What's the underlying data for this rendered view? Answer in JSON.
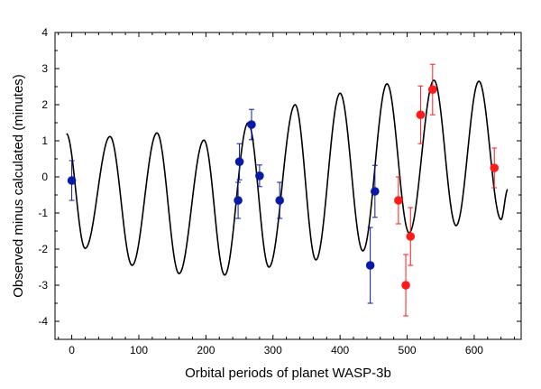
{
  "chart_data": {
    "type": "scatter",
    "title": "",
    "xlabel": "Orbital periods of planet WASP-3b",
    "ylabel": "Observed minus calculated (minutes)",
    "xlim": [
      -25,
      670
    ],
    "ylim": [
      -4.5,
      4
    ],
    "xticks": [
      0,
      100,
      200,
      300,
      400,
      500,
      600
    ],
    "yticks": [
      -4,
      -3,
      -2,
      -1,
      0,
      1,
      2,
      3,
      4
    ],
    "grid": false,
    "colors": {
      "blue": "#0a1aa8",
      "red": "#ff1a1a",
      "curve": "#000000",
      "frame": "#000000"
    },
    "series": [
      {
        "name": "blue observations",
        "color": "#0a1aa8",
        "points": [
          {
            "x": 0,
            "y": -0.1,
            "err": 0.55
          },
          {
            "x": 248,
            "y": -0.65,
            "err": 0.5
          },
          {
            "x": 250,
            "y": 0.42,
            "err": 0.5
          },
          {
            "x": 268,
            "y": 1.45,
            "err": 0.42
          },
          {
            "x": 280,
            "y": 0.03,
            "err": 0.3
          },
          {
            "x": 310,
            "y": -0.65,
            "err": 0.5
          },
          {
            "x": 445,
            "y": -2.45,
            "err": 1.05
          },
          {
            "x": 452,
            "y": -0.4,
            "err": 0.72
          }
        ]
      },
      {
        "name": "red observations",
        "color": "#ff1a1a",
        "points": [
          {
            "x": 487,
            "y": -0.65,
            "err": 0.65
          },
          {
            "x": 498,
            "y": -3.0,
            "err": 0.85
          },
          {
            "x": 505,
            "y": -1.65,
            "err": 0.8
          },
          {
            "x": 520,
            "y": 1.72,
            "err": 0.8
          },
          {
            "x": 538,
            "y": 2.42,
            "err": 0.7
          },
          {
            "x": 630,
            "y": 0.25,
            "err": 0.55
          }
        ]
      }
    ],
    "model_curve": {
      "name": "sinusoidal model",
      "x_start": -8,
      "x_end": 650,
      "peaks": [
        {
          "x": -8,
          "y": 1.2
        },
        {
          "x": 57,
          "y": 1.12
        },
        {
          "x": 127,
          "y": 1.22
        },
        {
          "x": 197,
          "y": 1.02
        },
        {
          "x": 263,
          "y": 1.5
        },
        {
          "x": 333,
          "y": 2.0
        },
        {
          "x": 400,
          "y": 2.32
        },
        {
          "x": 470,
          "y": 2.58
        },
        {
          "x": 540,
          "y": 2.68
        },
        {
          "x": 607,
          "y": 2.65
        }
      ],
      "troughs": [
        {
          "x": 20,
          "y": -1.98
        },
        {
          "x": 90,
          "y": -2.45
        },
        {
          "x": 160,
          "y": -2.68
        },
        {
          "x": 228,
          "y": -2.72
        },
        {
          "x": 294,
          "y": -2.5
        },
        {
          "x": 364,
          "y": -2.3
        },
        {
          "x": 434,
          "y": -2.05
        },
        {
          "x": 503,
          "y": -1.55
        },
        {
          "x": 573,
          "y": -1.35
        },
        {
          "x": 640,
          "y": -1.18
        }
      ],
      "y_end": -0.35
    }
  }
}
